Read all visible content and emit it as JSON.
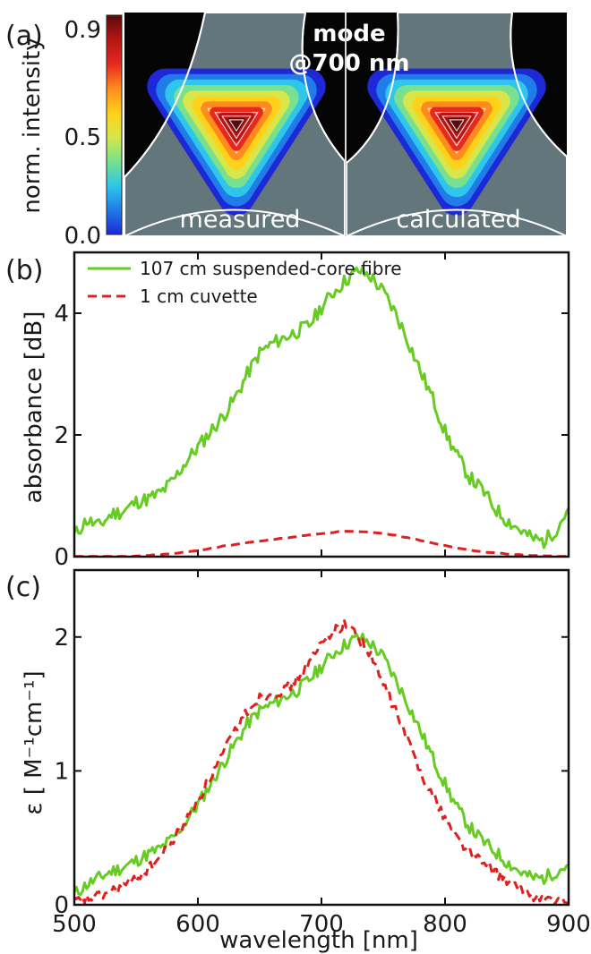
{
  "chart_data": [
    {
      "panel": "(a)",
      "type": "heatmap",
      "colorbar_label": "norm. intensity",
      "colorbar_ticks": [
        "0.0",
        "0.5",
        "0.9"
      ],
      "colormap": [
        "#1d28d6",
        "#1f7ce8",
        "#2ec6ea",
        "#78e08e",
        "#d7e64a",
        "#ffd21a",
        "#ff8a1e",
        "#e42a1e",
        "#b51614",
        "#5a0b0b"
      ],
      "overlay_title": [
        "mode",
        "@700 nm"
      ],
      "images": [
        {
          "label": "measured"
        },
        {
          "label": "calculated"
        }
      ]
    },
    {
      "panel": "(b)",
      "type": "line",
      "xlim": [
        500,
        900
      ],
      "ylim": [
        0,
        5
      ],
      "ylabel": "absorbance [dB]",
      "yticks": [
        0,
        2,
        4
      ],
      "xticks": [
        500,
        600,
        700,
        800,
        900
      ],
      "legend_position": "top-left",
      "series": [
        {
          "name": "107 cm suspended-core fibre",
          "color": "#66cc22",
          "x": [
            500,
            510,
            520,
            530,
            540,
            550,
            560,
            570,
            580,
            590,
            600,
            610,
            620,
            630,
            640,
            650,
            660,
            670,
            680,
            690,
            700,
            710,
            720,
            730,
            740,
            750,
            760,
            770,
            780,
            790,
            800,
            810,
            820,
            830,
            840,
            850,
            860,
            870,
            880,
            890,
            900
          ],
          "y": [
            0.35,
            0.6,
            0.5,
            0.7,
            0.75,
            0.9,
            0.95,
            1.05,
            1.25,
            1.55,
            1.8,
            2.05,
            2.3,
            2.6,
            3.0,
            3.35,
            3.5,
            3.6,
            3.7,
            3.8,
            4.1,
            4.35,
            4.55,
            4.7,
            4.6,
            4.35,
            4.0,
            3.55,
            3.05,
            2.6,
            2.05,
            1.65,
            1.3,
            1.1,
            0.8,
            0.6,
            0.45,
            0.3,
            0.25,
            0.45,
            0.8
          ]
        },
        {
          "name": "1 cm cuvette",
          "color": "#e02020",
          "dashed": true,
          "x": [
            500,
            520,
            540,
            560,
            580,
            600,
            620,
            640,
            660,
            680,
            700,
            720,
            740,
            760,
            780,
            800,
            820,
            840,
            860,
            880,
            900
          ],
          "y": [
            0.0,
            0.0,
            0.0,
            0.02,
            0.05,
            0.1,
            0.17,
            0.23,
            0.28,
            0.33,
            0.38,
            0.42,
            0.4,
            0.35,
            0.27,
            0.18,
            0.11,
            0.06,
            0.03,
            0.01,
            0.0
          ]
        }
      ]
    },
    {
      "panel": "(c)",
      "type": "line",
      "xlim": [
        500,
        900
      ],
      "ylim": [
        0,
        2.5
      ],
      "xlabel": "wavelength [nm]",
      "ylabel": "ε [ M⁻¹cm⁻¹]",
      "yticks": [
        0,
        1,
        2
      ],
      "xticks": [
        500,
        600,
        700,
        800,
        900
      ],
      "series": [
        {
          "name": "107 cm suspended-core fibre",
          "color": "#66cc22",
          "x": [
            500,
            510,
            520,
            530,
            540,
            550,
            560,
            570,
            580,
            590,
            600,
            610,
            620,
            630,
            640,
            650,
            660,
            670,
            680,
            690,
            700,
            710,
            720,
            730,
            740,
            750,
            760,
            770,
            780,
            790,
            800,
            810,
            820,
            830,
            840,
            850,
            860,
            870,
            880,
            890,
            900
          ],
          "y": [
            0.08,
            0.15,
            0.2,
            0.25,
            0.28,
            0.33,
            0.38,
            0.42,
            0.5,
            0.62,
            0.75,
            0.9,
            1.05,
            1.2,
            1.35,
            1.45,
            1.5,
            1.55,
            1.6,
            1.68,
            1.78,
            1.88,
            1.95,
            2.0,
            1.95,
            1.85,
            1.68,
            1.5,
            1.3,
            1.1,
            0.9,
            0.72,
            0.58,
            0.48,
            0.4,
            0.32,
            0.25,
            0.2,
            0.2,
            0.25,
            0.3
          ]
        },
        {
          "name": "1 cm cuvette",
          "color": "#e02020",
          "dashed": true,
          "x": [
            500,
            510,
            520,
            530,
            540,
            550,
            560,
            570,
            580,
            590,
            600,
            610,
            620,
            630,
            640,
            650,
            660,
            670,
            680,
            690,
            700,
            710,
            720,
            730,
            740,
            750,
            760,
            770,
            780,
            790,
            800,
            810,
            820,
            830,
            840,
            850,
            860,
            870,
            880,
            890,
            900
          ],
          "y": [
            0.02,
            0.04,
            0.06,
            0.1,
            0.14,
            0.2,
            0.27,
            0.36,
            0.48,
            0.62,
            0.78,
            0.95,
            1.12,
            1.3,
            1.45,
            1.55,
            1.58,
            1.6,
            1.68,
            1.8,
            1.95,
            2.05,
            2.1,
            2.0,
            1.85,
            1.65,
            1.45,
            1.22,
            1.0,
            0.82,
            0.65,
            0.5,
            0.4,
            0.32,
            0.25,
            0.18,
            0.12,
            0.07,
            0.04,
            0.02,
            0.01
          ]
        }
      ]
    }
  ]
}
